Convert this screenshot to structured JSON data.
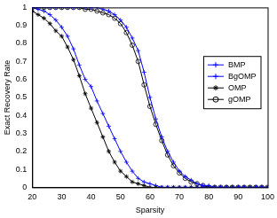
{
  "chart_data": {
    "type": "line",
    "x_label": "Sparsity",
    "y_label": "Exact Recovery Rate",
    "x": [
      20,
      22,
      24,
      26,
      28,
      30,
      32,
      34,
      36,
      38,
      40,
      42,
      44,
      46,
      48,
      50,
      52,
      54,
      56,
      58,
      60,
      62,
      64,
      66,
      68,
      70,
      72,
      74,
      76,
      78,
      80,
      82,
      84,
      86,
      88,
      90,
      92,
      94,
      96,
      98,
      100
    ],
    "xlim": [
      20,
      100
    ],
    "xticks": [
      20,
      30,
      40,
      50,
      60,
      70,
      80,
      90,
      100
    ],
    "ylim": [
      0,
      1
    ],
    "yticks": [
      0,
      0.1,
      0.2,
      0.3,
      0.4,
      0.5,
      0.6,
      0.7,
      0.8,
      0.9,
      1
    ],
    "grid": false,
    "legend": "right",
    "series": [
      {
        "name": "BMP",
        "color": "#0000ff",
        "marker": "plus",
        "values": [
          1,
          0.99,
          0.98,
          0.96,
          0.93,
          0.89,
          0.84,
          0.77,
          0.68,
          0.6,
          0.56,
          0.48,
          0.41,
          0.34,
          0.27,
          0.2,
          0.14,
          0.09,
          0.05,
          0.03,
          0.02,
          0.01,
          0,
          0,
          0,
          0,
          0,
          0,
          0,
          0,
          0,
          0,
          0,
          0,
          0,
          0,
          0,
          0,
          0,
          0,
          0
        ]
      },
      {
        "name": "BgOMP",
        "color": "#0000ff",
        "marker": "plus",
        "values": [
          1,
          1,
          1,
          1,
          1,
          1,
          1,
          1,
          1,
          1,
          1,
          1,
          0.99,
          0.98,
          0.96,
          0.93,
          0.89,
          0.83,
          0.76,
          0.64,
          0.5,
          0.38,
          0.28,
          0.2,
          0.14,
          0.09,
          0.06,
          0.04,
          0.02,
          0.01,
          0.01,
          0,
          0,
          0,
          0,
          0,
          0,
          0,
          0,
          0,
          0
        ]
      },
      {
        "name": "OMP",
        "color": "#000000",
        "marker": "star",
        "values": [
          0.98,
          0.96,
          0.94,
          0.91,
          0.87,
          0.84,
          0.78,
          0.71,
          0.62,
          0.52,
          0.44,
          0.36,
          0.28,
          0.2,
          0.14,
          0.09,
          0.06,
          0.03,
          0.02,
          0.01,
          0,
          0,
          0,
          0,
          0,
          0,
          0,
          0,
          0,
          0,
          0,
          0,
          0,
          0,
          0,
          0,
          0,
          0,
          0,
          0,
          0
        ]
      },
      {
        "name": "gOMP",
        "color": "#000000",
        "marker": "circle",
        "values": [
          1,
          1,
          1,
          1,
          1,
          1,
          1,
          1,
          1,
          0.99,
          0.99,
          0.98,
          0.97,
          0.96,
          0.94,
          0.91,
          0.86,
          0.79,
          0.7,
          0.57,
          0.45,
          0.35,
          0.26,
          0.18,
          0.12,
          0.08,
          0.05,
          0.03,
          0.02,
          0.01,
          0,
          0,
          0,
          0,
          0,
          0,
          0,
          0,
          0,
          0,
          0
        ]
      }
    ]
  }
}
